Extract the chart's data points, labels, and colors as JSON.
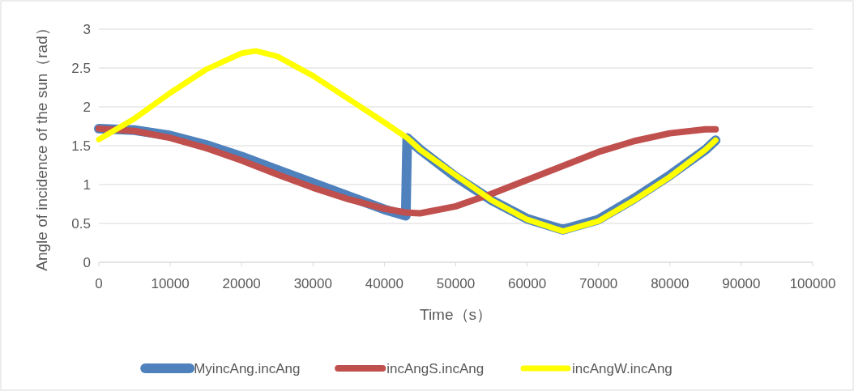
{
  "chart_data": {
    "type": "line",
    "xlabel": "Time（s）",
    "ylabel": "Angle of incidence of the sun（rad）",
    "xlim": [
      0,
      100000
    ],
    "xticks": [
      0,
      10000,
      20000,
      30000,
      40000,
      50000,
      60000,
      70000,
      80000,
      90000,
      100000
    ],
    "ylim": [
      0,
      3
    ],
    "yticks": [
      0,
      0.5,
      1,
      1.5,
      2,
      2.5,
      3
    ],
    "grid": "y",
    "legend": "bottom",
    "series": [
      {
        "name": "MyincAng.incAng",
        "color": "#4f81bd",
        "x": [
          0,
          5000,
          10000,
          15000,
          20000,
          25000,
          30000,
          35000,
          40000,
          43000,
          43200,
          45000,
          50000,
          55000,
          60000,
          65000,
          70000,
          75000,
          80000,
          85000,
          86400
        ],
        "values": [
          1.72,
          1.7,
          1.63,
          1.51,
          1.36,
          1.19,
          1.02,
          0.85,
          0.68,
          0.6,
          1.6,
          1.45,
          1.1,
          0.8,
          0.56,
          0.42,
          0.55,
          0.82,
          1.12,
          1.45,
          1.57
        ]
      },
      {
        "name": "incAngS.incAng",
        "color": "#c0504d",
        "x": [
          0,
          5000,
          10000,
          15000,
          20000,
          25000,
          30000,
          35000,
          40000,
          43000,
          45000,
          50000,
          55000,
          60000,
          65000,
          70000,
          75000,
          80000,
          85000,
          86400
        ],
        "values": [
          1.72,
          1.69,
          1.6,
          1.47,
          1.31,
          1.13,
          0.96,
          0.81,
          0.69,
          0.64,
          0.63,
          0.72,
          0.88,
          1.06,
          1.24,
          1.42,
          1.56,
          1.66,
          1.71,
          1.71
        ]
      },
      {
        "name": "incAngW.incAng",
        "color": "#ffff00",
        "x": [
          0,
          5000,
          10000,
          15000,
          20000,
          22000,
          25000,
          30000,
          35000,
          40000,
          43200,
          45000,
          50000,
          55000,
          60000,
          65000,
          70000,
          75000,
          80000,
          85000,
          86400
        ],
        "values": [
          1.58,
          1.85,
          2.18,
          2.48,
          2.69,
          2.72,
          2.65,
          2.4,
          2.1,
          1.8,
          1.6,
          1.45,
          1.12,
          0.8,
          0.55,
          0.4,
          0.53,
          0.8,
          1.1,
          1.45,
          1.57
        ]
      }
    ]
  }
}
